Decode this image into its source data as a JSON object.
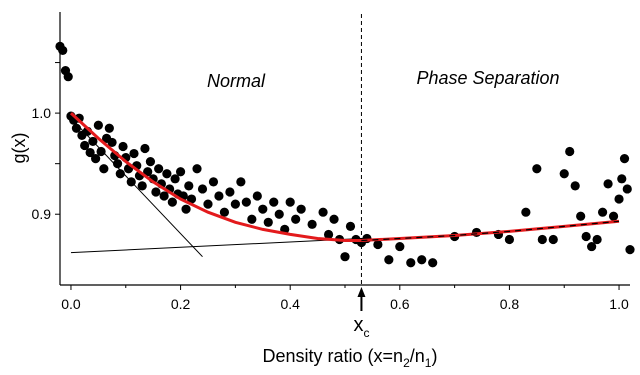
{
  "chart_data": {
    "type": "scatter",
    "xlabel": {
      "main": "Density ratio (x=n",
      "sub1": "2",
      "mid": "/n",
      "sub2": "1",
      "end": ")"
    },
    "ylabel": "g(x)",
    "xlim": [
      -0.02,
      1.02
    ],
    "ylim": [
      0.83,
      1.1
    ],
    "x_ticks": [
      {
        "value": 0.0,
        "label": "0.0"
      },
      {
        "value": 0.2,
        "label": "0.2"
      },
      {
        "value": 0.4,
        "label": "0.4"
      },
      {
        "value": 0.6,
        "label": "0.6"
      },
      {
        "value": 0.8,
        "label": "0.8"
      },
      {
        "value": 1.0,
        "label": "1.0"
      }
    ],
    "y_ticks": [
      {
        "value": 0.9,
        "label": "0.9"
      },
      {
        "value": 0.95,
        "label": ""
      },
      {
        "value": 1.0,
        "label": "1.0"
      },
      {
        "value": 1.05,
        "label": ""
      }
    ],
    "annotations": {
      "normal": "Normal",
      "phase": "Phase Separation",
      "xc_main": "x",
      "xc_sub": "c"
    },
    "xc": 0.53,
    "colors": {
      "fit": "#e31a1c",
      "points": "#000000",
      "tangent": "#000000"
    },
    "series": [
      {
        "points": [
          [
            -0.02,
            1.066
          ],
          [
            -0.015,
            1.062
          ],
          [
            -0.01,
            1.042
          ],
          [
            -0.005,
            1.036
          ],
          [
            0.0,
            0.997
          ],
          [
            0.005,
            0.993
          ],
          [
            0.01,
            0.985
          ],
          [
            0.015,
            0.995
          ],
          [
            0.02,
            0.978
          ],
          [
            0.025,
            0.968
          ],
          [
            0.03,
            0.982
          ],
          [
            0.035,
            0.961
          ],
          [
            0.04,
            0.972
          ],
          [
            0.045,
            0.955
          ],
          [
            0.05,
            0.988
          ],
          [
            0.055,
            0.962
          ],
          [
            0.06,
            0.945
          ],
          [
            0.065,
            0.975
          ],
          [
            0.07,
            0.985
          ],
          [
            0.075,
            0.971
          ],
          [
            0.08,
            0.958
          ],
          [
            0.085,
            0.95
          ],
          [
            0.09,
            0.94
          ],
          [
            0.095,
            0.967
          ],
          [
            0.1,
            0.956
          ],
          [
            0.105,
            0.945
          ],
          [
            0.11,
            0.932
          ],
          [
            0.115,
            0.96
          ],
          [
            0.12,
            0.948
          ],
          [
            0.125,
            0.938
          ],
          [
            0.13,
            0.928
          ],
          [
            0.135,
            0.965
          ],
          [
            0.14,
            0.942
          ],
          [
            0.145,
            0.952
          ],
          [
            0.15,
            0.935
          ],
          [
            0.155,
            0.922
          ],
          [
            0.16,
            0.945
          ],
          [
            0.165,
            0.93
          ],
          [
            0.17,
            0.918
          ],
          [
            0.175,
            0.94
          ],
          [
            0.18,
            0.925
          ],
          [
            0.185,
            0.912
          ],
          [
            0.19,
            0.935
          ],
          [
            0.195,
            0.92
          ],
          [
            0.2,
            0.942
          ],
          [
            0.205,
            0.918
          ],
          [
            0.21,
            0.905
          ],
          [
            0.215,
            0.928
          ],
          [
            0.22,
            0.915
          ],
          [
            0.23,
            0.945
          ],
          [
            0.24,
            0.925
          ],
          [
            0.25,
            0.91
          ],
          [
            0.26,
            0.932
          ],
          [
            0.27,
            0.918
          ],
          [
            0.28,
            0.902
          ],
          [
            0.29,
            0.922
          ],
          [
            0.3,
            0.91
          ],
          [
            0.31,
            0.932
          ],
          [
            0.32,
            0.912
          ],
          [
            0.33,
            0.895
          ],
          [
            0.34,
            0.918
          ],
          [
            0.35,
            0.905
          ],
          [
            0.36,
            0.892
          ],
          [
            0.37,
            0.912
          ],
          [
            0.38,
            0.9
          ],
          [
            0.39,
            0.885
          ],
          [
            0.4,
            0.912
          ],
          [
            0.41,
            0.895
          ],
          [
            0.42,
            0.905
          ],
          [
            0.44,
            0.89
          ],
          [
            0.46,
            0.902
          ],
          [
            0.47,
            0.88
          ],
          [
            0.48,
            0.895
          ],
          [
            0.49,
            0.875
          ],
          [
            0.5,
            0.858
          ],
          [
            0.51,
            0.888
          ],
          [
            0.52,
            0.875
          ],
          [
            0.53,
            0.872
          ],
          [
            0.54,
            0.876
          ],
          [
            0.56,
            0.87
          ],
          [
            0.58,
            0.855
          ],
          [
            0.6,
            0.868
          ],
          [
            0.62,
            0.852
          ],
          [
            0.64,
            0.855
          ],
          [
            0.66,
            0.852
          ],
          [
            0.7,
            0.878
          ],
          [
            0.74,
            0.882
          ],
          [
            0.78,
            0.88
          ],
          [
            0.8,
            0.875
          ],
          [
            0.83,
            0.902
          ],
          [
            0.85,
            0.945
          ],
          [
            0.86,
            0.875
          ],
          [
            0.88,
            0.875
          ],
          [
            0.9,
            0.94
          ],
          [
            0.91,
            0.962
          ],
          [
            0.92,
            0.928
          ],
          [
            0.93,
            0.898
          ],
          [
            0.94,
            0.878
          ],
          [
            0.95,
            0.868
          ],
          [
            0.96,
            0.875
          ],
          [
            0.97,
            0.902
          ],
          [
            0.98,
            0.93
          ],
          [
            0.99,
            0.898
          ],
          [
            1.0,
            0.915
          ],
          [
            1.005,
            0.935
          ],
          [
            1.01,
            0.955
          ],
          [
            1.015,
            0.925
          ],
          [
            1.02,
            0.865
          ]
        ]
      }
    ],
    "fit_curve": [
      [
        0.0,
        1.0
      ],
      [
        0.05,
        0.975
      ],
      [
        0.1,
        0.952
      ],
      [
        0.15,
        0.932
      ],
      [
        0.2,
        0.915
      ],
      [
        0.25,
        0.902
      ],
      [
        0.3,
        0.892
      ],
      [
        0.35,
        0.885
      ],
      [
        0.4,
        0.88
      ],
      [
        0.45,
        0.876
      ],
      [
        0.5,
        0.874
      ],
      [
        0.53,
        0.874
      ],
      [
        0.6,
        0.876
      ],
      [
        0.7,
        0.879
      ],
      [
        0.8,
        0.883
      ],
      [
        0.9,
        0.888
      ],
      [
        1.0,
        0.893
      ]
    ],
    "tangent_lines": [
      {
        "from": [
          0.0,
          0.995
        ],
        "to": [
          0.24,
          0.858
        ]
      },
      {
        "from": [
          0.0,
          0.862
        ],
        "to": [
          0.53,
          0.876
        ]
      }
    ]
  }
}
